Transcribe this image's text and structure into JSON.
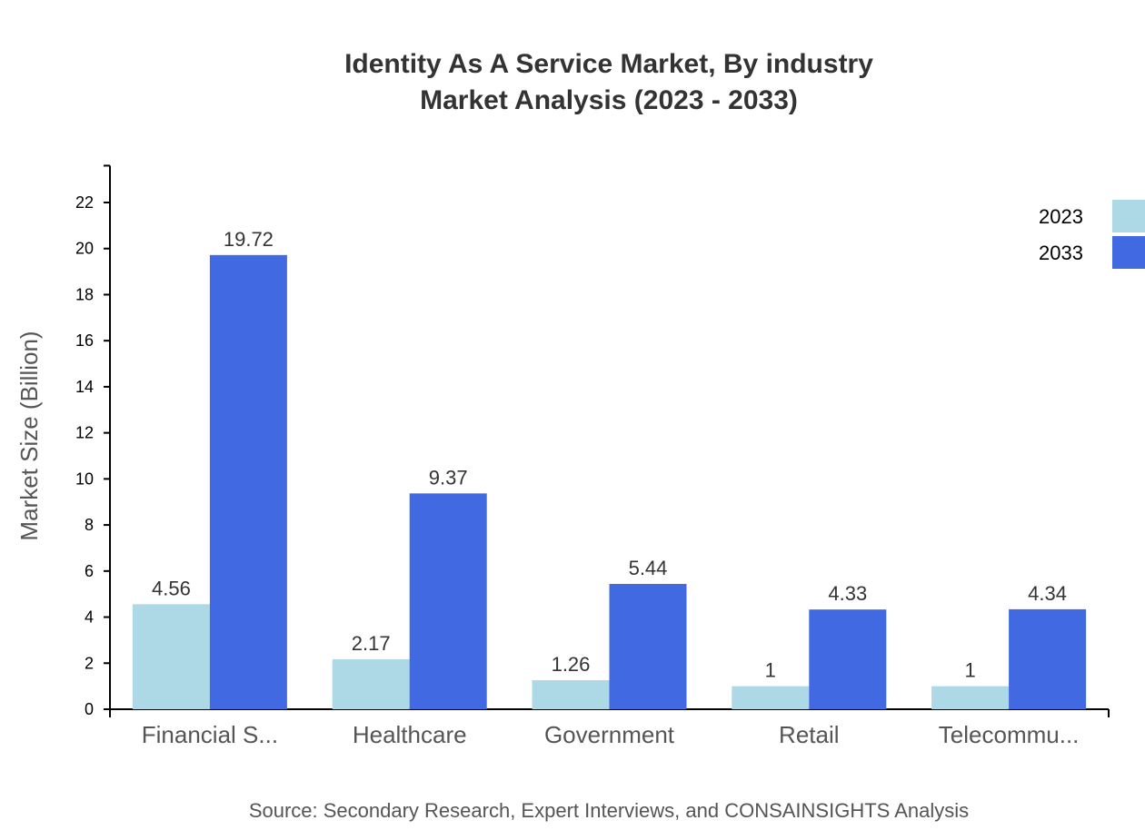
{
  "chart_data": {
    "type": "bar",
    "title": "Identity As A Service Market, By industry",
    "subtitle": "Market Analysis (2023 - 2033)",
    "xlabel": "",
    "ylabel": "Market Size (Billion)",
    "ylim": [
      0,
      23.6
    ],
    "yticks": [
      0,
      2,
      4,
      6,
      8,
      10,
      12,
      14,
      16,
      18,
      20,
      22
    ],
    "grid": false,
    "legend_position": "top-right",
    "categories": [
      "Financial S...",
      "Healthcare",
      "Government",
      "Retail",
      "Telecommu..."
    ],
    "series": [
      {
        "name": "2023",
        "color": "#add8e6",
        "values": [
          4.56,
          2.17,
          1.26,
          1,
          1
        ]
      },
      {
        "name": "2033",
        "color": "#4169e1",
        "values": [
          19.72,
          9.37,
          5.44,
          4.33,
          4.34
        ]
      }
    ],
    "source": "Source: Secondary Research, Expert Interviews, and CONSAINSIGHTS Analysis"
  }
}
